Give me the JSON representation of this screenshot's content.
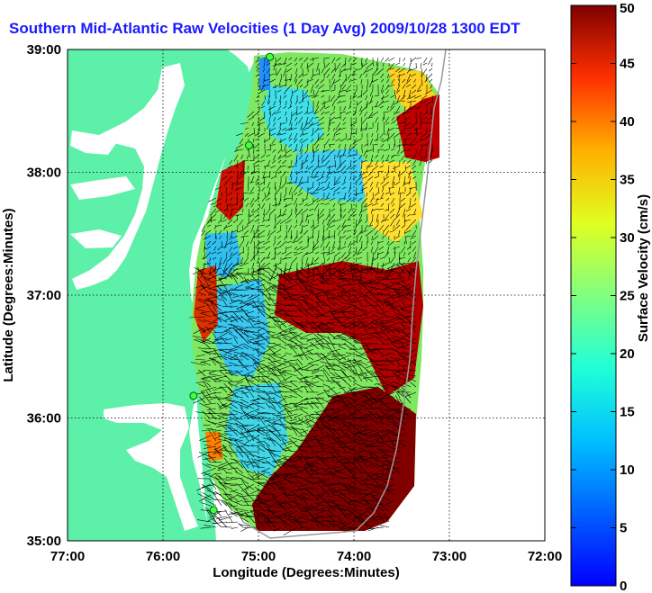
{
  "title": "Southern Mid-Atlantic Raw Velocities (1 Day Avg) 2009/10/28 1300 EDT",
  "map": {
    "xlabel": "Longitude (Degrees:Minutes)",
    "ylabel": "Latitude (Degrees:Minutes)",
    "x_ticks": [
      "77:00",
      "76:00",
      "75:00",
      "74:00",
      "73:00",
      "72:00"
    ],
    "y_ticks": [
      "39:00",
      "38:00",
      "37:00",
      "36:00",
      "35:00"
    ],
    "xlim": [
      -77,
      -72
    ],
    "ylim": [
      35,
      39
    ],
    "grid": true,
    "land_color": "#5cf0a8",
    "water_color": "#ffffff",
    "radar_sites": [
      {
        "lon": -74.88,
        "lat": 38.94
      },
      {
        "lon": -75.1,
        "lat": 38.22
      },
      {
        "lon": -75.68,
        "lat": 36.18
      },
      {
        "lon": -75.47,
        "lat": 35.25
      }
    ]
  },
  "colorbar": {
    "label": "Surface Velocity (cm/s)",
    "ticks": [
      "0",
      "5",
      "10",
      "15",
      "20",
      "25",
      "30",
      "35",
      "40",
      "45",
      "50"
    ],
    "min": 0,
    "max": 50,
    "colormap": "jet"
  }
}
